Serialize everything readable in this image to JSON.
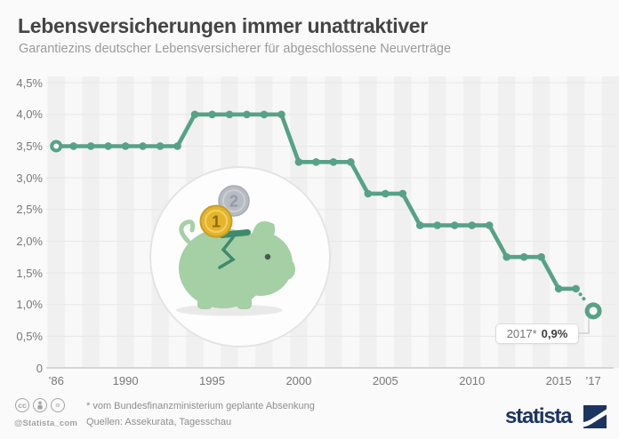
{
  "header": {
    "title": "Lebensversicherungen immer unattraktiver",
    "subtitle": "Garantiezins deutscher Lebensversicherer für abgeschlossene Neuverträge"
  },
  "chart_data": {
    "type": "line",
    "title": "Garantiezins deutscher Lebensversicherer für abgeschlossene Neuverträge",
    "unit": "percent",
    "x": [
      1986,
      1987,
      1988,
      1989,
      1990,
      1991,
      1992,
      1993,
      1994,
      1995,
      1996,
      1997,
      1998,
      1999,
      2000,
      2001,
      2002,
      2003,
      2004,
      2005,
      2006,
      2007,
      2008,
      2009,
      2010,
      2011,
      2012,
      2013,
      2014,
      2015,
      2016,
      2017
    ],
    "values": [
      3.5,
      3.5,
      3.5,
      3.5,
      3.5,
      3.5,
      3.5,
      3.5,
      4.0,
      4.0,
      4.0,
      4.0,
      4.0,
      4.0,
      3.25,
      3.25,
      3.25,
      3.25,
      2.75,
      2.75,
      2.75,
      2.25,
      2.25,
      2.25,
      2.25,
      2.25,
      1.75,
      1.75,
      1.75,
      1.25,
      1.25,
      0.9
    ],
    "ylim": [
      0,
      4.5
    ],
    "grid": true,
    "legend": "none",
    "line_color": "#57a287",
    "last_point_projected": true,
    "x_ticks": [
      {
        "year": 1986,
        "label": "’86"
      },
      {
        "year": 1990,
        "label": "1990"
      },
      {
        "year": 1995,
        "label": "1995"
      },
      {
        "year": 2000,
        "label": "2000"
      },
      {
        "year": 2005,
        "label": "2005"
      },
      {
        "year": 2010,
        "label": "2010"
      },
      {
        "year": 2015,
        "label": "2015"
      },
      {
        "year": 2017,
        "label": "’17"
      }
    ],
    "y_ticks": [
      {
        "value": 0,
        "label": "0"
      },
      {
        "value": 0.5,
        "label": "0,5%"
      },
      {
        "value": 1.0,
        "label": "1,0%"
      },
      {
        "value": 1.5,
        "label": "1,5%"
      },
      {
        "value": 2.0,
        "label": "2,0%"
      },
      {
        "value": 2.5,
        "label": "2,5%"
      },
      {
        "value": 3.0,
        "label": "3,0%"
      },
      {
        "value": 3.5,
        "label": "3,5%"
      },
      {
        "value": 4.0,
        "label": "4,0%"
      },
      {
        "value": 4.5,
        "label": "4,5%"
      }
    ],
    "annotation": {
      "prefix": "2017*",
      "value": "0,9%"
    }
  },
  "watermark": {
    "icon": "piggy-bank-icon",
    "gold_coin_label": "1",
    "silver_coin_label": "2"
  },
  "footer": {
    "license": {
      "glyph_cc": "cc",
      "glyph_nd": "="
    },
    "handle": "@Statista_com",
    "footnote": "* vom Bundesfinanzministerium geplante Absenkung",
    "sources": "Quellen: Assekurata, Tagesschau",
    "brand": "statista"
  },
  "colors": {
    "accent_green": "#57a287",
    "brand_navy": "#1d3460",
    "pig_green": "#a5cfa5",
    "pig_dark_green": "#3f8a6c"
  }
}
